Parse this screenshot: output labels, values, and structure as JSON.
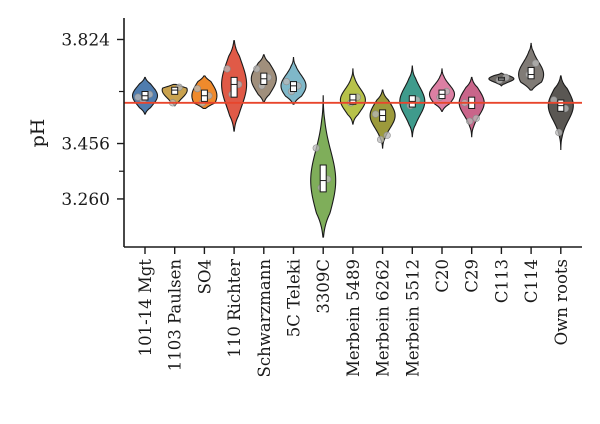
{
  "chart_data": {
    "type": "violin",
    "title": "",
    "xlabel": "",
    "ylabel": "pH",
    "ylim": [
      3.09,
      3.9
    ],
    "yticks": [
      3.824,
      3.456,
      3.26
    ],
    "ytick_labels": [
      "3.824",
      "3.456",
      "3.260"
    ],
    "reference_line": {
      "y": 3.6,
      "color": "#e8452c"
    },
    "grid": false,
    "legend": "none",
    "categories": [
      "101-14 Mgt",
      "1103 Paulsen",
      "SO4",
      "110 Richter",
      "Schwarzmann",
      "5C Teleki",
      "3309C",
      "Merbein 5489",
      "Merbein 6262",
      "Merbein 5512",
      "C20",
      "C29",
      "C113",
      "C114",
      "Own roots"
    ],
    "series": [
      {
        "category": "101-14 Mgt",
        "color": "#4f7cae",
        "min": 3.56,
        "max": 3.69,
        "median": 3.625,
        "q1": 3.61,
        "q3": 3.64,
        "points": [
          3.61,
          3.63,
          3.62
        ]
      },
      {
        "category": "1103 Paulsen",
        "color": "#c9a24e",
        "min": 3.59,
        "max": 3.665,
        "median": 3.645,
        "q1": 3.63,
        "q3": 3.655,
        "points": [
          3.6,
          3.655
        ]
      },
      {
        "category": "SO4",
        "color": "#ef8a2c",
        "min": 3.58,
        "max": 3.695,
        "median": 3.625,
        "q1": 3.605,
        "q3": 3.645,
        "points": [
          3.6,
          3.625,
          3.65
        ]
      },
      {
        "category": "110 Richter",
        "color": "#e05a47",
        "min": 3.5,
        "max": 3.82,
        "median": 3.665,
        "q1": 3.62,
        "q3": 3.69,
        "points": [
          3.63,
          3.665,
          3.72
        ]
      },
      {
        "category": "Schwarzmann",
        "color": "#a08f7c",
        "min": 3.6,
        "max": 3.77,
        "median": 3.685,
        "q1": 3.665,
        "q3": 3.705,
        "points": [
          3.66,
          3.69,
          3.72
        ]
      },
      {
        "category": "5C Teleki",
        "color": "#7fb8c9",
        "min": 3.595,
        "max": 3.76,
        "median": 3.66,
        "q1": 3.64,
        "q3": 3.675,
        "points": [
          3.64,
          3.66,
          3.675
        ]
      },
      {
        "category": "3309C",
        "color": "#7fae5a",
        "min": 3.125,
        "max": 3.625,
        "median": 3.325,
        "q1": 3.285,
        "q3": 3.38,
        "points": [
          3.3,
          3.33,
          3.44
        ]
      },
      {
        "category": "Merbein 5489",
        "color": "#b7c24a",
        "min": 3.525,
        "max": 3.72,
        "median": 3.61,
        "q1": 3.595,
        "q3": 3.63,
        "points": [
          3.6,
          3.62
        ]
      },
      {
        "category": "Merbein 6262",
        "color": "#9c9a3c",
        "min": 3.44,
        "max": 3.645,
        "median": 3.555,
        "q1": 3.535,
        "q3": 3.575,
        "points": [
          3.47,
          3.485,
          3.56
        ]
      },
      {
        "category": "Merbein 5512",
        "color": "#3f9b8c",
        "min": 3.48,
        "max": 3.73,
        "median": 3.605,
        "q1": 3.585,
        "q3": 3.625,
        "points": [
          3.59,
          3.61
        ]
      },
      {
        "category": "C20",
        "color": "#dc7fa3",
        "min": 3.57,
        "max": 3.72,
        "median": 3.63,
        "q1": 3.615,
        "q3": 3.645,
        "points": [
          3.62,
          3.64
        ]
      },
      {
        "category": "C29",
        "color": "#c9658a",
        "min": 3.48,
        "max": 3.69,
        "median": 3.6,
        "q1": 3.58,
        "q3": 3.62,
        "points": [
          3.535,
          3.545,
          3.6
        ]
      },
      {
        "category": "C113",
        "color": "#6e6a66",
        "min": 3.66,
        "max": 3.705,
        "median": 3.685,
        "q1": 3.68,
        "q3": 3.69,
        "points": [
          3.68,
          3.69
        ]
      },
      {
        "category": "C114",
        "color": "#807b76",
        "min": 3.645,
        "max": 3.81,
        "median": 3.7,
        "q1": 3.685,
        "q3": 3.725,
        "points": [
          3.7,
          3.74
        ]
      },
      {
        "category": "Own roots",
        "color": "#5a5753",
        "min": 3.435,
        "max": 3.695,
        "median": 3.59,
        "q1": 3.57,
        "q3": 3.61,
        "points": [
          3.495,
          3.58,
          3.61
        ]
      }
    ]
  }
}
